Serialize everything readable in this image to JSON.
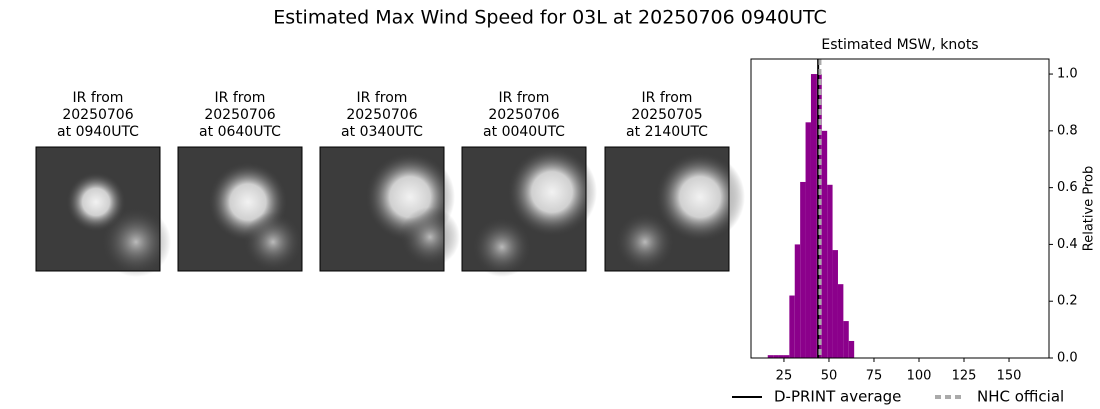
{
  "title": "Estimated Max Wind Speed for 03L at 20250706 0940UTC",
  "panels": [
    {
      "label": [
        "IR from",
        "20250706",
        "at 0940UTC"
      ]
    },
    {
      "label": [
        "IR from",
        "20250706",
        "at 0640UTC"
      ]
    },
    {
      "label": [
        "IR from",
        "20250706",
        "at 0340UTC"
      ]
    },
    {
      "label": [
        "IR from",
        "20250706",
        "at 0040UTC"
      ]
    },
    {
      "label": [
        "IR from",
        "20250705",
        "at 2140UTC"
      ]
    }
  ],
  "chart_data": {
    "type": "histogram",
    "title": "Estimated MSW, knots",
    "y_label": "Relative Prob",
    "bins": [
      16,
      19,
      22,
      25,
      28,
      31,
      34,
      37,
      40,
      43,
      46,
      49,
      52,
      55,
      58,
      61,
      64
    ],
    "counts": [
      0.01,
      0.01,
      0.01,
      0.01,
      0.22,
      0.4,
      0.62,
      0.83,
      1.0,
      1.0,
      0.8,
      0.61,
      0.38,
      0.26,
      0.13,
      0.06
    ],
    "color": "#8b008b",
    "lines": [
      {
        "name": "D-PRINT average",
        "value": 44,
        "color": "#000000",
        "style": "solid"
      },
      {
        "name": "NHC official",
        "value": 45,
        "color": "#aaaaaa",
        "style": "dashed"
      }
    ],
    "xlim": [
      6.7,
      172.2
    ],
    "xticks": [
      25,
      50,
      75,
      100,
      125,
      150
    ],
    "ylim": [
      0,
      1.053
    ],
    "yticks": [
      {
        "value": 0,
        "label": "0.0"
      },
      0.2,
      0.4,
      0.6,
      0.8,
      {
        "value": 1,
        "label": "1.0"
      }
    ],
    "y_axis_side": "right",
    "legend": "bottom"
  }
}
